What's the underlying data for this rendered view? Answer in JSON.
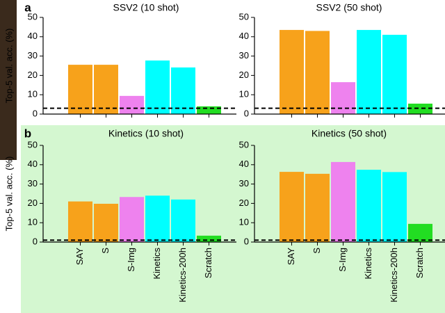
{
  "chart_data": [
    {
      "type": "bar",
      "panel": "a",
      "title": "SSV2 (10 shot)",
      "ylabel": "Top-5 val. acc. (%)",
      "categories": [
        null,
        null,
        null,
        null,
        null,
        null
      ],
      "values": [
        25.5,
        25.5,
        9.4,
        27.7,
        24.1,
        4
      ],
      "colors": [
        "#f7a21b",
        "#f7a21b",
        "#ee82ee",
        "#00ffff",
        "#00ffff",
        "#22dd22"
      ],
      "hline": 3,
      "ylim": [
        0,
        50
      ],
      "yticks": [
        0,
        10,
        20,
        30,
        40,
        50
      ]
    },
    {
      "type": "bar",
      "title": "SSV2 (50 shot)",
      "categories": [
        null,
        null,
        null,
        null,
        null,
        null
      ],
      "values": [
        43.5,
        43,
        16.5,
        43.5,
        41,
        5.4
      ],
      "colors": [
        "#f7a21b",
        "#f7a21b",
        "#ee82ee",
        "#00ffff",
        "#00ffff",
        "#22dd22"
      ],
      "hline": 3,
      "ylim": [
        0,
        50
      ],
      "yticks": [
        0,
        10,
        20,
        30,
        40,
        50
      ]
    },
    {
      "type": "bar",
      "panel": "b",
      "title": "Kinetics (10 shot)",
      "ylabel": "Top-5 val. acc. (%)",
      "categories": [
        "SAY",
        "S",
        "S-Img",
        "Kinetics",
        "Kinetics-200h",
        "Scratch"
      ],
      "values": [
        21,
        19.8,
        23.3,
        24,
        22,
        3.3
      ],
      "colors": [
        "#f7a21b",
        "#f7a21b",
        "#ee82ee",
        "#00ffff",
        "#00ffff",
        "#22dd22"
      ],
      "hline": 1,
      "ylim": [
        0,
        50
      ],
      "yticks": [
        0,
        10,
        20,
        30,
        40,
        50
      ]
    },
    {
      "type": "bar",
      "title": "Kinetics (50 shot)",
      "categories": [
        "SAY",
        "S",
        "S-Img",
        "Kinetics",
        "Kinetics-200h",
        "Scratch"
      ],
      "values": [
        36.3,
        35.3,
        41.4,
        37.4,
        36.2,
        9.4
      ],
      "colors": [
        "#f7a21b",
        "#f7a21b",
        "#ee82ee",
        "#00ffff",
        "#00ffff",
        "#22dd22"
      ],
      "hline": 1,
      "ylim": [
        0,
        50
      ],
      "yticks": [
        0,
        10,
        20,
        30,
        40,
        50
      ]
    }
  ]
}
